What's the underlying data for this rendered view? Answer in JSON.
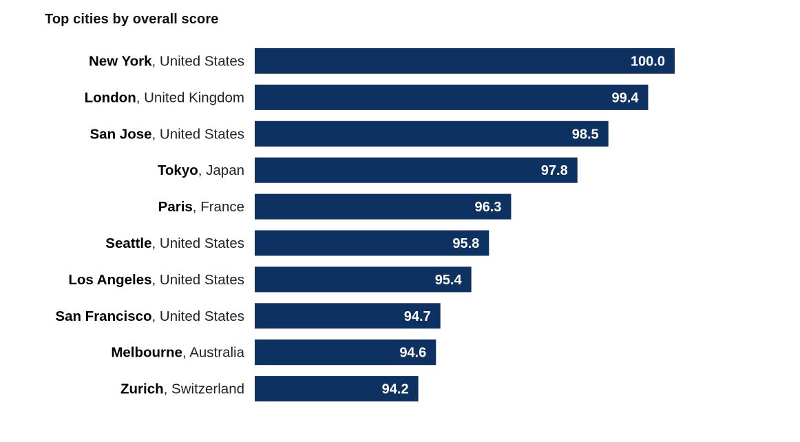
{
  "chart_data": {
    "type": "bar",
    "orientation": "horizontal",
    "title": "Top cities by overall score",
    "xlabel": "",
    "ylabel": "",
    "grid": false,
    "bar_color": "#0d3161",
    "value_label_color": "#ffffff",
    "categories": [
      {
        "city": "New York",
        "country": ", United States"
      },
      {
        "city": "London",
        "country": ", United Kingdom"
      },
      {
        "city": "San Jose",
        "country": ", United States"
      },
      {
        "city": "Tokyo",
        "country": ", Japan"
      },
      {
        "city": "Paris",
        "country": ", France"
      },
      {
        "city": "Seattle",
        "country": ", United States"
      },
      {
        "city": "Los Angeles",
        "country": ", United States"
      },
      {
        "city": "San Francisco",
        "country": ", United States"
      },
      {
        "city": "Melbourne",
        "country": ", Australia"
      },
      {
        "city": "Zurich",
        "country": ", Switzerland"
      }
    ],
    "values": [
      100.0,
      99.4,
      98.5,
      97.8,
      96.3,
      95.8,
      95.4,
      94.7,
      94.6,
      94.2
    ],
    "value_labels": [
      "100.0",
      "99.4",
      "98.5",
      "97.8",
      "96.3",
      "95.8",
      "95.4",
      "94.7",
      "94.6",
      "94.2"
    ],
    "xlim": [
      90.5,
      100
    ]
  }
}
